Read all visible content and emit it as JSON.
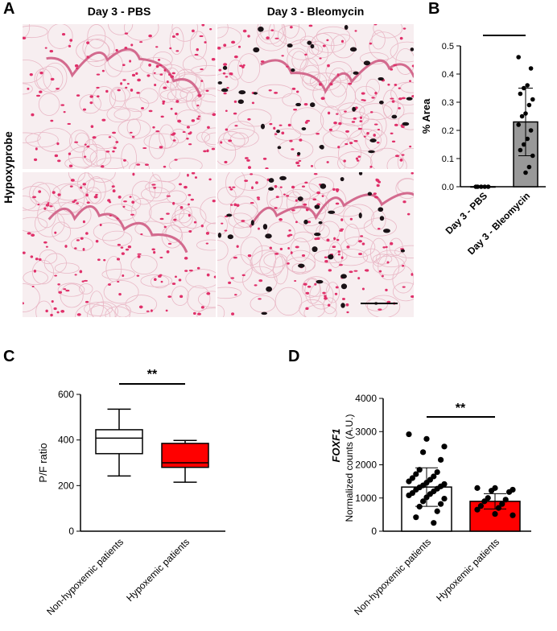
{
  "panels": {
    "a": {
      "letter": "A",
      "col_titles": [
        "Day 3 - PBS",
        "Day 3 - Bleomycin"
      ],
      "row_title": "Hypoxyprobe",
      "colors": {
        "stain_pink": "#e0306a",
        "tissue_bg": "#f7eef0",
        "dark_stain": "#1a1216"
      }
    },
    "b": {
      "letter": "B",
      "significance": "***"
    },
    "c": {
      "letter": "C",
      "significance": "**"
    },
    "d": {
      "letter": "D",
      "significance": "**"
    }
  },
  "chart_data": [
    {
      "panel": "B",
      "type": "bar",
      "categories": [
        "Day 3 - PBS",
        "Day 3 - Bleomycin"
      ],
      "values": [
        0.0,
        0.23
      ],
      "sd": [
        0.0,
        0.12
      ],
      "points": [
        [
          0,
          0,
          0,
          0,
          0
        ],
        [
          0.46,
          0.42,
          0.36,
          0.35,
          0.33,
          0.31,
          0.29,
          0.26,
          0.25,
          0.22,
          0.2,
          0.17,
          0.15,
          0.13,
          0.11,
          0.07,
          0.05
        ]
      ],
      "ylabel": "% Area",
      "ylim": [
        0,
        0.5
      ],
      "yticks": [
        0.0,
        0.1,
        0.2,
        0.3,
        0.4,
        0.5
      ],
      "bar_colors": [
        "#ffffff",
        "#999999"
      ]
    },
    {
      "panel": "C",
      "type": "box",
      "categories": [
        "Non-hypoxemic patients",
        "Hypoxemic patients"
      ],
      "boxes": [
        {
          "min": 242,
          "q1": 340,
          "median": 408,
          "q3": 445,
          "max": 535
        },
        {
          "min": 215,
          "q1": 280,
          "median": 300,
          "q3": 385,
          "max": 398
        }
      ],
      "ylabel": "P/F ratio",
      "ylim": [
        0,
        600
      ],
      "yticks": [
        0,
        200,
        400,
        600
      ],
      "box_colors": [
        "#ffffff",
        "#ff0000"
      ]
    },
    {
      "panel": "D",
      "type": "bar",
      "categories": [
        "Non-hypoxemic patients",
        "Hypoxemic patients"
      ],
      "values": [
        1330,
        900
      ],
      "sd": [
        580,
        230
      ],
      "points": [
        [
          2920,
          2780,
          2550,
          2380,
          2150,
          1850,
          1780,
          1720,
          1650,
          1600,
          1550,
          1500,
          1460,
          1420,
          1380,
          1350,
          1320,
          1280,
          1250,
          1200,
          1150,
          1120,
          1080,
          1020,
          980,
          900,
          820,
          740,
          600,
          420,
          250
        ],
        [
          1300,
          1300,
          1250,
          1220,
          1180,
          1000,
          950,
          900,
          820,
          760,
          700,
          650,
          520,
          480
        ]
      ],
      "ylabel_top": "FOXF1",
      "ylabel": "Normalized counts (A.U.)",
      "ylim": [
        0,
        4000
      ],
      "yticks": [
        0,
        1000,
        2000,
        3000,
        4000
      ],
      "bar_colors": [
        "#ffffff",
        "#ff0000"
      ]
    }
  ]
}
